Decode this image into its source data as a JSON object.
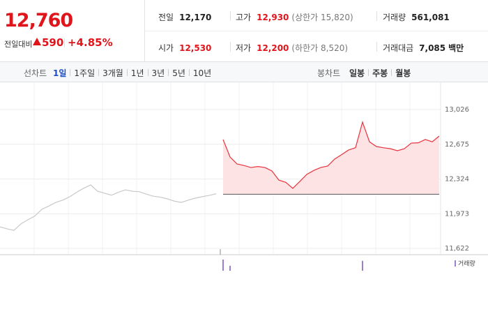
{
  "quote": {
    "price": "12,760",
    "change_label": "전일대비",
    "change": "590",
    "change_rate": "+4.85%"
  },
  "stats": [
    {
      "label": "전일",
      "value": "12,170",
      "color": "#222"
    },
    {
      "label": "고가",
      "value": "12,930",
      "note": "(상한가 15,820)",
      "color": "#e0151b"
    },
    {
      "label": "거래량",
      "value": "561,081",
      "color": "#222"
    },
    {
      "label": "시가",
      "value": "12,530",
      "color": "#e0151b"
    },
    {
      "label": "저가",
      "value": "12,200",
      "note": "(하한가 8,520)",
      "color": "#e0151b"
    },
    {
      "label": "거래대금",
      "value": "7,085",
      "unit": "백만",
      "color": "#222"
    }
  ],
  "tabs": {
    "line_label": "선차트",
    "line": [
      "1일",
      "1주일",
      "3개월",
      "1년",
      "3년",
      "5년",
      "10년"
    ],
    "active": 0,
    "candle_label": "봉차트",
    "candle": [
      "일봉",
      "주봉",
      "월봉"
    ]
  },
  "chart_data": {
    "type": "line",
    "series": [
      {
        "color": "#c8c8c8",
        "values": [
          11840,
          11820,
          11805,
          11870,
          11911,
          11950,
          12017,
          12050,
          12087,
          12110,
          12144,
          12190,
          12230,
          12264,
          12200,
          12180,
          12160,
          12190,
          12214,
          12200,
          12195,
          12170,
          12150,
          12140,
          12123,
          12100,
          12087,
          12110,
          12130,
          12145,
          12158,
          12175,
          null,
          null,
          null,
          null,
          null,
          null,
          null,
          null,
          null,
          null,
          null,
          null,
          null,
          null,
          null,
          null,
          null,
          null,
          null,
          null,
          null,
          null,
          null,
          null,
          null,
          null,
          null,
          null,
          null,
          null,
          null,
          null
        ]
      },
      {
        "color": "#e8323c",
        "fill": "#fde3e4",
        "values": [
          null,
          null,
          null,
          null,
          null,
          null,
          null,
          null,
          null,
          null,
          null,
          null,
          null,
          null,
          null,
          null,
          null,
          null,
          null,
          null,
          null,
          null,
          null,
          null,
          null,
          null,
          null,
          null,
          null,
          null,
          null,
          null,
          12723,
          12546,
          12476,
          12460,
          12440,
          12450,
          12440,
          12405,
          12313,
          12290,
          12229,
          12299,
          12370,
          12410,
          12440,
          12455,
          12525,
          12570,
          12617,
          12640,
          12899,
          12700,
          12652,
          12640,
          12630,
          12610,
          12630,
          12687,
          12690,
          12723,
          12700,
          12758
        ]
      }
    ],
    "baseline": 12170,
    "ylim": [
      11622,
      13026
    ],
    "yticks": [
      {
        "value": 13026,
        "label": "13,026"
      },
      {
        "value": 12675,
        "label": "12,675"
      },
      {
        "value": 12324,
        "label": "12,324"
      },
      {
        "value": 11973,
        "label": "11,973"
      },
      {
        "value": 11622,
        "label": "11,622"
      }
    ],
    "grid": true,
    "volume": {
      "name": "거래량",
      "color": "#9b7fd1",
      "values": [
        0,
        0,
        0,
        0,
        0,
        0,
        0,
        0,
        0,
        0,
        0,
        0,
        0,
        0,
        0,
        0,
        0,
        0,
        0,
        0,
        0,
        0,
        0,
        0,
        0,
        0,
        0,
        0,
        0,
        0,
        0,
        0,
        18,
        8,
        0,
        0,
        0,
        0,
        0,
        0,
        0,
        0,
        0,
        0,
        0,
        0,
        0,
        0,
        0,
        0,
        0,
        0,
        16,
        0,
        0,
        0,
        0,
        0,
        0,
        0,
        0,
        0,
        0,
        0
      ]
    }
  }
}
